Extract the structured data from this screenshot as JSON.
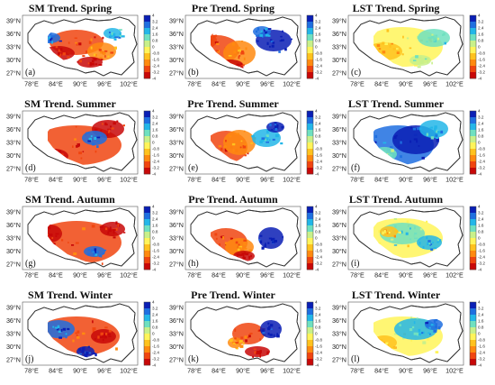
{
  "figure": {
    "panels": [
      {
        "title": "SM Trend. Spring",
        "label": "(a)",
        "colorbar_ticks": [
          "4",
          "3.2",
          "2.4",
          "1.6",
          "0.8",
          "0",
          "-0.8",
          "-1.6",
          "-2.4",
          "-3.2",
          "-4"
        ]
      },
      {
        "title": "Pre Trend. Spring",
        "label": "(b)",
        "colorbar_ticks": [
          "4",
          "3.2",
          "2.4",
          "1.6",
          "0.8",
          "0",
          "-0.8",
          "-1.6",
          "-2.4",
          "-3.2",
          "-4"
        ]
      },
      {
        "title": "LST Trend. Spring",
        "label": "(c)",
        "colorbar_ticks": [
          "4",
          "3.2",
          "2.4",
          "1.6",
          "0.8",
          "0",
          "-0.8",
          "-1.6",
          "-2.4",
          "-3.2",
          "-4"
        ]
      },
      {
        "title": "SM Trend. Summer",
        "label": "(d)",
        "colorbar_ticks": [
          "4",
          "3.2",
          "2.4",
          "1.6",
          "0.8",
          "0",
          "-0.8",
          "-1.6",
          "-2.4",
          "-3.2",
          "-4"
        ]
      },
      {
        "title": "Pre Trend. Summer",
        "label": "(e)",
        "colorbar_ticks": [
          "4",
          "3.2",
          "2.4",
          "1.6",
          "0.8",
          "0",
          "-0.8",
          "-1.6",
          "-2.4",
          "-3.2",
          "-4"
        ]
      },
      {
        "title": "LST Trend. Summer",
        "label": "(f)",
        "colorbar_ticks": [
          "4",
          "3.2",
          "2.4",
          "1.6",
          "0.8",
          "0",
          "-0.8",
          "-1.6",
          "-2.4",
          "-3.2",
          "-4"
        ]
      },
      {
        "title": "SM Trend. Autumn",
        "label": "(g)",
        "colorbar_ticks": [
          "4",
          "3.2",
          "2.4",
          "1.6",
          "0.8",
          "0",
          "-0.8",
          "-1.6",
          "-2.4",
          "-3.2",
          "-4"
        ]
      },
      {
        "title": "Pre Trend. Autumn",
        "label": "(h)",
        "colorbar_ticks": [
          "4",
          "3.2",
          "2.4",
          "1.6",
          "0.8",
          "0",
          "-0.8",
          "-1.6",
          "-2.4",
          "-3.2",
          "-4"
        ]
      },
      {
        "title": "LST Trend. Autumn",
        "label": "(i)",
        "colorbar_ticks": [
          "4",
          "3.2",
          "2.4",
          "1.6",
          "0.8",
          "0",
          "-0.8",
          "-1.6",
          "-2.4",
          "-3.2",
          "-4"
        ]
      },
      {
        "title": "SM Trend. Winter",
        "label": "(j)",
        "colorbar_ticks": [
          "4",
          "3.2",
          "2.4",
          "1.6",
          "0.8",
          "0",
          "-0.8",
          "-1.6",
          "-2.4",
          "-3.2",
          "-4"
        ]
      },
      {
        "title": "Pre Trend. Winter",
        "label": "(k)",
        "colorbar_ticks": [
          "4",
          "3.2",
          "2.4",
          "1.6",
          "0.8",
          "0",
          "-0.8",
          "-1.6",
          "-2.4",
          "-3.2",
          "-4"
        ]
      },
      {
        "title": "LST Trend. Winter",
        "label": "(l)",
        "colorbar_ticks": [
          "4",
          "3.2",
          "2.4",
          "1.6",
          "0.8",
          "0",
          "-0.8",
          "-1.6",
          "-2.4",
          "-3.2",
          "-4"
        ]
      }
    ],
    "lat_ticks": [
      "39°N",
      "36°N",
      "33°N",
      "30°N",
      "27°N"
    ],
    "lon_ticks": [
      "78°E",
      "84°E",
      "90°E",
      "96°E",
      "102°E"
    ],
    "colormap": [
      "#0a1fb5",
      "#1f6fe0",
      "#23b6e8",
      "#6fe0c0",
      "#c8f08a",
      "#fff45a",
      "#ffc21e",
      "#ff8a10",
      "#f04510",
      "#c80808"
    ]
  }
}
